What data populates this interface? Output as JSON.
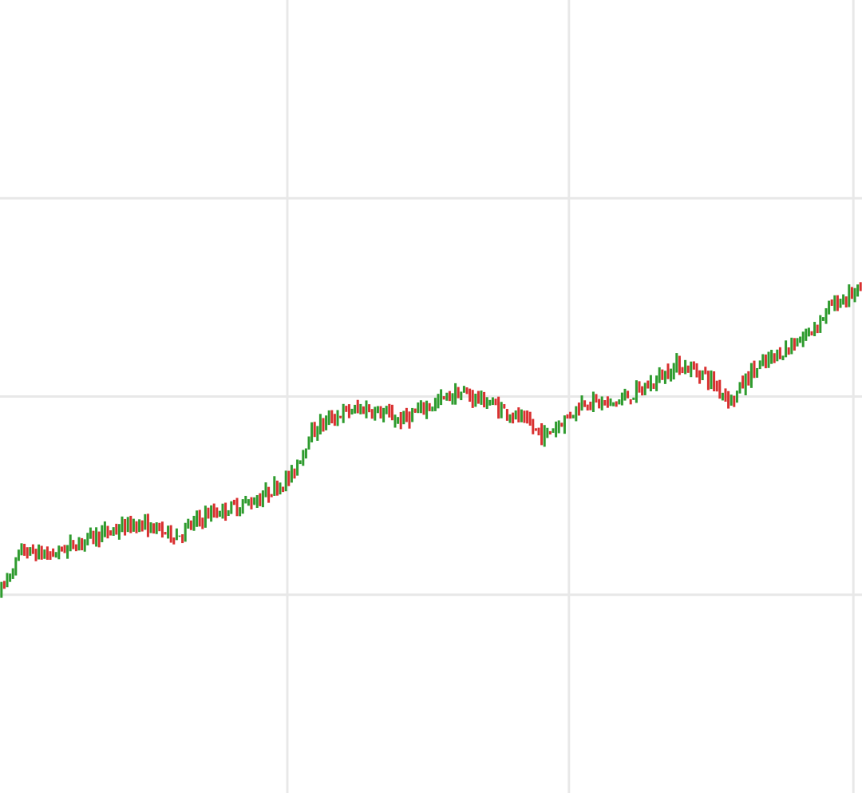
{
  "chart_data": {
    "type": "candlestick",
    "title": "",
    "xlabel": "",
    "ylabel": "",
    "grid": true,
    "legend": "none",
    "x_range": [
      0,
      300
    ],
    "y_range": [
      0,
      100
    ],
    "x_grid": [
      100,
      198,
      297
    ],
    "y_grid": [
      25,
      50,
      75
    ],
    "colors": {
      "up": "#2e9b2e",
      "down": "#d93030",
      "grid": "#e8e8e8",
      "background": "#ffffff"
    },
    "anchors": [
      [
        0,
        25
      ],
      [
        8,
        30.5
      ],
      [
        18,
        30
      ],
      [
        30,
        32
      ],
      [
        48,
        34
      ],
      [
        62,
        32.5
      ],
      [
        72,
        35
      ],
      [
        90,
        37
      ],
      [
        102,
        40
      ],
      [
        108,
        45
      ],
      [
        112,
        46.5
      ],
      [
        120,
        48
      ],
      [
        128,
        48.5
      ],
      [
        140,
        47
      ],
      [
        148,
        48.5
      ],
      [
        160,
        50.5
      ],
      [
        165,
        50
      ],
      [
        172,
        49
      ],
      [
        180,
        47.5
      ],
      [
        190,
        45
      ],
      [
        198,
        47.5
      ],
      [
        204,
        49.5
      ],
      [
        213,
        49
      ],
      [
        225,
        51
      ],
      [
        236,
        54
      ],
      [
        245,
        53
      ],
      [
        255,
        49.5
      ],
      [
        262,
        53
      ],
      [
        272,
        55.5
      ],
      [
        282,
        58
      ],
      [
        290,
        61.5
      ],
      [
        300,
        63.5
      ]
    ],
    "jumps": [
      [
        71,
        8
      ],
      [
        123,
        -6
      ],
      [
        278,
        6
      ]
    ]
  }
}
